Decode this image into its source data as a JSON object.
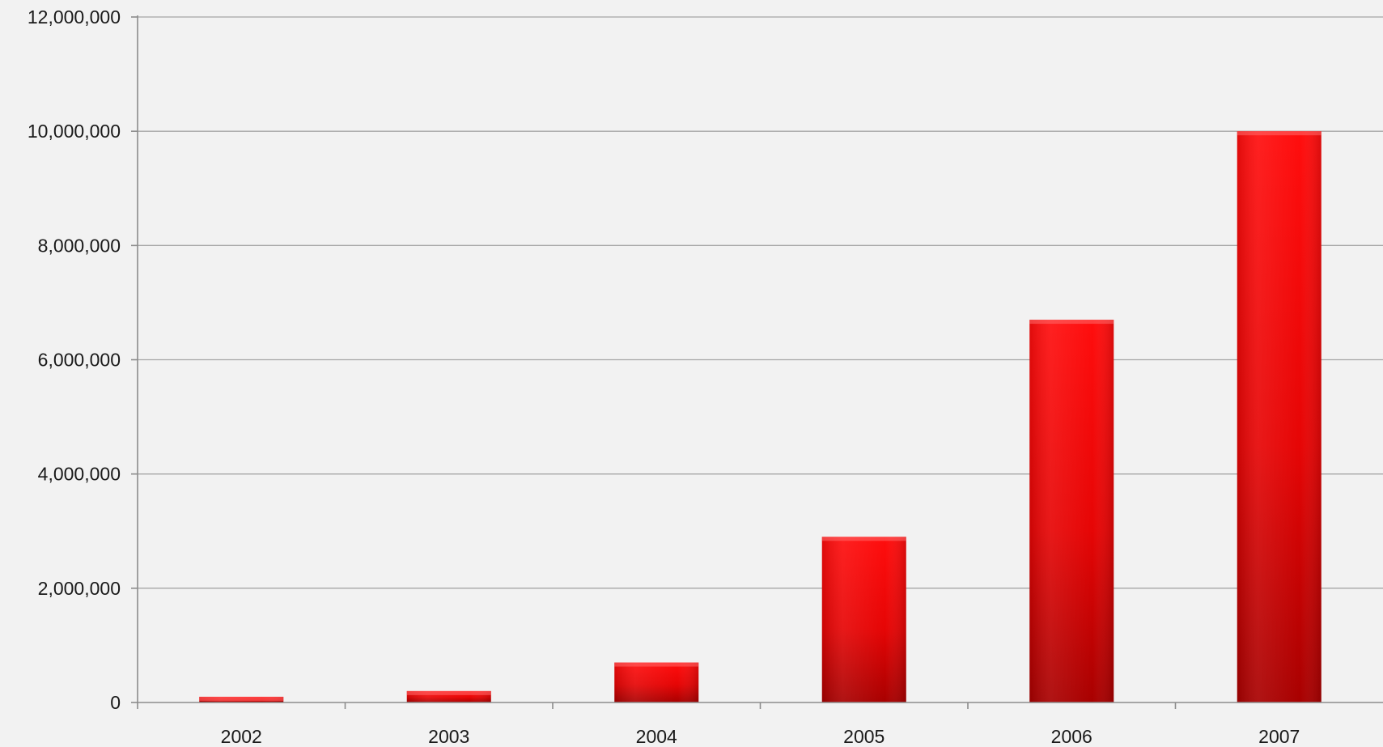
{
  "chart_data": {
    "type": "bar",
    "title": "",
    "xlabel": "",
    "ylabel": "",
    "categories": [
      "2002",
      "2003",
      "2004",
      "2005",
      "2006",
      "2007"
    ],
    "values": [
      100000,
      200000,
      700000,
      2900000,
      6700000,
      10000000
    ],
    "ylim": [
      0,
      12000000
    ],
    "yticks": [
      0,
      2000000,
      4000000,
      6000000,
      8000000,
      10000000,
      12000000
    ],
    "ytick_labels": [
      "0",
      "2,000,000",
      "4,000,000",
      "6,000,000",
      "8,000,000",
      "10,000,000",
      "12,000,000"
    ],
    "grid": true,
    "legend": "none",
    "colors": {
      "bar_top": "#ff0d0d",
      "bar_bottom": "#a80000",
      "background": "#f2f2f2",
      "grid": "#a6a6a6"
    }
  }
}
